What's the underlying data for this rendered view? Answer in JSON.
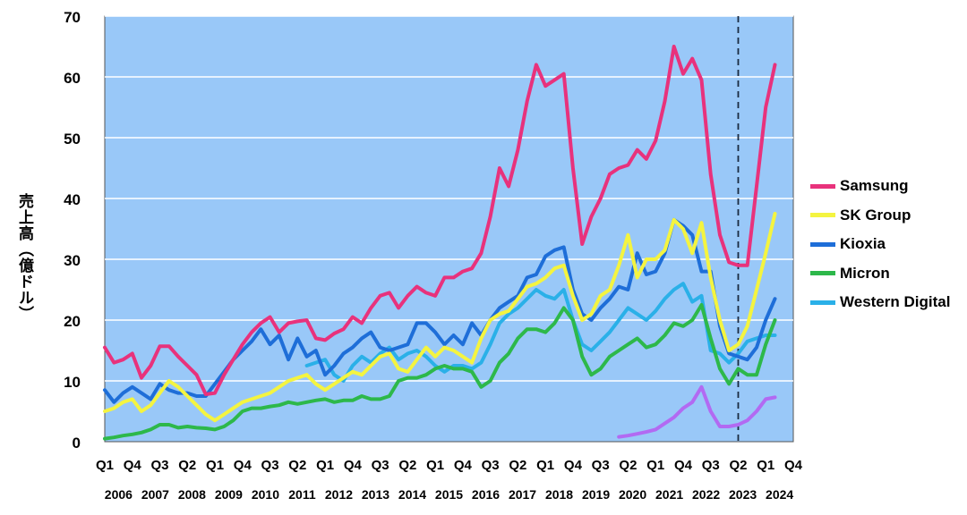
{
  "chart_data": {
    "type": "line",
    "ylabel": "売上高（億ドル）",
    "ylim": [
      0,
      70
    ],
    "yticks": [
      0,
      10,
      20,
      30,
      40,
      50,
      60,
      70
    ],
    "quarter_labels": [
      "Q1",
      "Q4",
      "Q3",
      "Q2",
      "Q1",
      "Q4",
      "Q3",
      "Q2",
      "Q1",
      "Q4",
      "Q3",
      "Q2",
      "Q1",
      "Q4",
      "Q3",
      "Q2",
      "Q1",
      "Q4",
      "Q3",
      "Q2",
      "Q1",
      "Q4",
      "Q3",
      "Q2",
      "Q1",
      "Q4"
    ],
    "years": [
      "2006",
      "2007",
      "2008",
      "2009",
      "2010",
      "2011",
      "2012",
      "2013",
      "2014",
      "2015",
      "2016",
      "2017",
      "2018",
      "2019",
      "2020",
      "2021",
      "2022",
      "2023",
      "2024"
    ],
    "x_range": [
      "2006 Q1",
      "2024 Q4"
    ],
    "vertical_marker": "2023 Q2",
    "grid": true,
    "legend_position": "right",
    "background": "#99c8f8",
    "series": [
      {
        "name": "Samsung",
        "color": "#e8327c",
        "x": [
          "2006 Q1",
          "2006 Q2",
          "2006 Q3",
          "2006 Q4",
          "2007 Q1",
          "2007 Q2",
          "2007 Q3",
          "2007 Q4",
          "2008 Q1",
          "2008 Q2",
          "2008 Q3",
          "2008 Q4",
          "2009 Q1",
          "2009 Q2",
          "2009 Q3",
          "2009 Q4",
          "2010 Q1",
          "2010 Q2",
          "2010 Q3",
          "2010 Q4",
          "2011 Q1",
          "2011 Q2",
          "2011 Q3",
          "2011 Q4",
          "2012 Q1",
          "2012 Q2",
          "2012 Q3",
          "2012 Q4",
          "2013 Q1",
          "2013 Q2",
          "2013 Q3",
          "2013 Q4",
          "2014 Q1",
          "2014 Q2",
          "2014 Q3",
          "2014 Q4",
          "2015 Q1",
          "2015 Q2",
          "2015 Q3",
          "2015 Q4",
          "2016 Q1",
          "2016 Q2",
          "2016 Q3",
          "2016 Q4",
          "2017 Q1",
          "2017 Q2",
          "2017 Q3",
          "2017 Q4",
          "2018 Q1",
          "2018 Q2",
          "2018 Q3",
          "2018 Q4",
          "2019 Q1",
          "2019 Q2",
          "2019 Q3",
          "2019 Q4",
          "2020 Q1",
          "2020 Q2",
          "2020 Q3",
          "2020 Q4",
          "2021 Q1",
          "2021 Q2",
          "2021 Q3",
          "2021 Q4",
          "2022 Q1",
          "2022 Q2",
          "2022 Q3",
          "2022 Q4",
          "2023 Q1",
          "2023 Q2",
          "2023 Q3",
          "2023 Q4",
          "2024 Q1",
          "2024 Q2"
        ],
        "values": [
          15.5,
          13,
          13.5,
          14.5,
          10.5,
          12.5,
          15.7,
          15.7,
          14,
          12.5,
          11,
          7.8,
          8,
          11,
          13.5,
          16,
          18,
          19.5,
          20.5,
          18,
          19.5,
          19.8,
          20,
          17,
          16.7,
          17.8,
          18.5,
          20.5,
          19.5,
          22,
          24,
          24.5,
          22,
          24,
          25.5,
          24.5,
          24,
          27,
          27,
          28,
          28.5,
          31,
          37,
          45,
          42,
          48,
          56,
          62,
          58.5,
          59.5,
          60.5,
          45,
          32.5,
          37,
          40,
          44,
          45,
          45.5,
          48,
          46.5,
          49.5,
          56,
          65,
          60.5,
          63,
          59.5,
          44,
          34,
          29.5,
          29,
          29,
          42,
          55,
          62
        ]
      },
      {
        "name": "SK Group",
        "color": "#f4f440",
        "x": [
          "2006 Q1",
          "2006 Q2",
          "2006 Q3",
          "2006 Q4",
          "2007 Q1",
          "2007 Q2",
          "2007 Q3",
          "2007 Q4",
          "2008 Q1",
          "2008 Q2",
          "2008 Q3",
          "2008 Q4",
          "2009 Q1",
          "2009 Q2",
          "2009 Q3",
          "2009 Q4",
          "2010 Q1",
          "2010 Q2",
          "2010 Q3",
          "2010 Q4",
          "2011 Q1",
          "2011 Q2",
          "2011 Q3",
          "2011 Q4",
          "2012 Q1",
          "2012 Q2",
          "2012 Q3",
          "2012 Q4",
          "2013 Q1",
          "2013 Q2",
          "2013 Q3",
          "2013 Q4",
          "2014 Q1",
          "2014 Q2",
          "2014 Q3",
          "2014 Q4",
          "2015 Q1",
          "2015 Q2",
          "2015 Q3",
          "2015 Q4",
          "2016 Q1",
          "2016 Q2",
          "2016 Q3",
          "2016 Q4",
          "2017 Q1",
          "2017 Q2",
          "2017 Q3",
          "2017 Q4",
          "2018 Q1",
          "2018 Q2",
          "2018 Q3",
          "2018 Q4",
          "2019 Q1",
          "2019 Q2",
          "2019 Q3",
          "2019 Q4",
          "2020 Q1",
          "2020 Q2",
          "2020 Q3",
          "2020 Q4",
          "2021 Q1",
          "2021 Q2",
          "2021 Q3",
          "2021 Q4",
          "2022 Q1",
          "2022 Q2",
          "2022 Q3",
          "2022 Q4",
          "2023 Q1",
          "2023 Q2",
          "2023 Q3",
          "2023 Q4",
          "2024 Q1",
          "2024 Q2"
        ],
        "values": [
          5,
          5.5,
          6.5,
          7,
          5,
          6,
          8,
          10,
          9,
          7.5,
          6,
          4.5,
          3.5,
          4.5,
          5.5,
          6.5,
          7,
          7.5,
          8,
          9,
          10,
          10.5,
          11,
          9.5,
          8.5,
          9.5,
          10.5,
          11.5,
          11,
          12.5,
          14,
          14.5,
          12,
          11.5,
          13.5,
          15.5,
          14,
          15.5,
          15,
          14,
          13,
          17,
          20,
          21,
          21.5,
          23.5,
          25.5,
          26,
          27,
          28.5,
          29,
          24,
          20,
          21,
          24,
          25,
          29,
          34,
          27,
          30,
          30,
          31.5,
          36.5,
          35,
          31,
          36,
          27,
          20,
          15,
          16,
          19,
          25,
          31,
          37.5
        ]
      },
      {
        "name": "Kioxia",
        "color": "#1e6ed8",
        "x": [
          "2006 Q1",
          "2006 Q2",
          "2006 Q3",
          "2006 Q4",
          "2007 Q1",
          "2007 Q2",
          "2007 Q3",
          "2007 Q4",
          "2008 Q1",
          "2008 Q2",
          "2008 Q3",
          "2008 Q4",
          "2009 Q1",
          "2009 Q2",
          "2009 Q3",
          "2009 Q4",
          "2010 Q1",
          "2010 Q2",
          "2010 Q3",
          "2010 Q4",
          "2011 Q1",
          "2011 Q2",
          "2011 Q3",
          "2011 Q4",
          "2012 Q1",
          "2012 Q2",
          "2012 Q3",
          "2012 Q4",
          "2013 Q1",
          "2013 Q2",
          "2013 Q3",
          "2013 Q4",
          "2014 Q1",
          "2014 Q2",
          "2014 Q3",
          "2014 Q4",
          "2015 Q1",
          "2015 Q2",
          "2015 Q3",
          "2015 Q4",
          "2016 Q1",
          "2016 Q2",
          "2016 Q3",
          "2016 Q4",
          "2017 Q1",
          "2017 Q2",
          "2017 Q3",
          "2017 Q4",
          "2018 Q1",
          "2018 Q2",
          "2018 Q3",
          "2018 Q4",
          "2019 Q1",
          "2019 Q2",
          "2019 Q3",
          "2019 Q4",
          "2020 Q1",
          "2020 Q2",
          "2020 Q3",
          "2020 Q4",
          "2021 Q1",
          "2021 Q2",
          "2021 Q3",
          "2021 Q4",
          "2022 Q1",
          "2022 Q2",
          "2022 Q3",
          "2022 Q4",
          "2023 Q1",
          "2023 Q2",
          "2023 Q3",
          "2023 Q4",
          "2024 Q1",
          "2024 Q2"
        ],
        "values": [
          8.5,
          6.5,
          8,
          9,
          8,
          7,
          9.5,
          8.5,
          8,
          8,
          7.5,
          7.5,
          9.5,
          11.5,
          13.5,
          15,
          16.5,
          18.5,
          16,
          17.5,
          13.5,
          17,
          14,
          15,
          11,
          12.5,
          14.5,
          15.5,
          17,
          18,
          15.5,
          15,
          15.5,
          16,
          19.5,
          19.5,
          18,
          16,
          17.5,
          16,
          19.5,
          17.5,
          20,
          22,
          23,
          24,
          27,
          27.5,
          30.5,
          31.5,
          32,
          25,
          21,
          20,
          22,
          23.5,
          25.5,
          25,
          31,
          27.5,
          28,
          31,
          36.5,
          35.5,
          34,
          28,
          28,
          19,
          14.5,
          14,
          13.5,
          15.5,
          20,
          23.5
        ]
      },
      {
        "name": "Micron",
        "color": "#2db84a",
        "x": [
          "2006 Q1",
          "2006 Q2",
          "2006 Q3",
          "2006 Q4",
          "2007 Q1",
          "2007 Q2",
          "2007 Q3",
          "2007 Q4",
          "2008 Q1",
          "2008 Q2",
          "2008 Q3",
          "2008 Q4",
          "2009 Q1",
          "2009 Q2",
          "2009 Q3",
          "2009 Q4",
          "2010 Q1",
          "2010 Q2",
          "2010 Q3",
          "2010 Q4",
          "2011 Q1",
          "2011 Q2",
          "2011 Q3",
          "2011 Q4",
          "2012 Q1",
          "2012 Q2",
          "2012 Q3",
          "2012 Q4",
          "2013 Q1",
          "2013 Q2",
          "2013 Q3",
          "2013 Q4",
          "2014 Q1",
          "2014 Q2",
          "2014 Q3",
          "2014 Q4",
          "2015 Q1",
          "2015 Q2",
          "2015 Q3",
          "2015 Q4",
          "2016 Q1",
          "2016 Q2",
          "2016 Q3",
          "2016 Q4",
          "2017 Q1",
          "2017 Q2",
          "2017 Q3",
          "2017 Q4",
          "2018 Q1",
          "2018 Q2",
          "2018 Q3",
          "2018 Q4",
          "2019 Q1",
          "2019 Q2",
          "2019 Q3",
          "2019 Q4",
          "2020 Q1",
          "2020 Q2",
          "2020 Q3",
          "2020 Q4",
          "2021 Q1",
          "2021 Q2",
          "2021 Q3",
          "2021 Q4",
          "2022 Q1",
          "2022 Q2",
          "2022 Q3",
          "2022 Q4",
          "2023 Q1",
          "2023 Q2",
          "2023 Q3",
          "2023 Q4",
          "2024 Q1",
          "2024 Q2"
        ],
        "values": [
          0.5,
          0.7,
          1,
          1.2,
          1.5,
          2,
          2.8,
          2.8,
          2.3,
          2.5,
          2.3,
          2.2,
          2,
          2.5,
          3.5,
          5,
          5.5,
          5.5,
          5.8,
          6,
          6.5,
          6.2,
          6.5,
          6.8,
          7,
          6.5,
          6.8,
          6.8,
          7.5,
          7,
          7,
          7.5,
          10,
          10.5,
          10.5,
          11,
          12,
          12.5,
          12,
          12,
          11.5,
          9,
          10,
          13,
          14.5,
          17,
          18.5,
          18.5,
          18,
          19.5,
          22,
          20,
          14,
          11,
          12,
          14,
          15,
          16,
          17,
          15.5,
          16,
          17.5,
          19.5,
          19,
          20,
          22.5,
          17,
          12,
          9.5,
          12,
          11,
          11,
          16,
          20
        ]
      },
      {
        "name": "Western Digital",
        "color": "#2ab0e8",
        "x": [
          "2011 Q3",
          "2011 Q4",
          "2012 Q1",
          "2012 Q2",
          "2012 Q3",
          "2012 Q4",
          "2013 Q1",
          "2013 Q2",
          "2013 Q3",
          "2013 Q4",
          "2014 Q1",
          "2014 Q2",
          "2014 Q3",
          "2014 Q4",
          "2015 Q1",
          "2015 Q2",
          "2015 Q3",
          "2015 Q4",
          "2016 Q1",
          "2016 Q2",
          "2016 Q3",
          "2016 Q4",
          "2017 Q1",
          "2017 Q2",
          "2017 Q3",
          "2017 Q4",
          "2018 Q1",
          "2018 Q2",
          "2018 Q3",
          "2018 Q4",
          "2019 Q1",
          "2019 Q2",
          "2019 Q3",
          "2019 Q4",
          "2020 Q1",
          "2020 Q2",
          "2020 Q3",
          "2020 Q4",
          "2021 Q1",
          "2021 Q2",
          "2021 Q3",
          "2021 Q4",
          "2022 Q1",
          "2022 Q2",
          "2022 Q3",
          "2022 Q4",
          "2023 Q1",
          "2023 Q2",
          "2023 Q3",
          "2023 Q4",
          "2024 Q1",
          "2024 Q2"
        ],
        "values": [
          12.5,
          13,
          13.5,
          11,
          10,
          12.5,
          14,
          13,
          14.5,
          15.5,
          13.5,
          14.5,
          15,
          14,
          12.5,
          11.5,
          12.5,
          12.5,
          12,
          13,
          16,
          19.5,
          21,
          22,
          23.5,
          25,
          24,
          23.5,
          25,
          20,
          16,
          15,
          16.5,
          18,
          20,
          22,
          21,
          20,
          21.5,
          23.5,
          25,
          26,
          23,
          24,
          15,
          14.5,
          13,
          14.5,
          16.5,
          17,
          17.5,
          17.5
        ]
      },
      {
        "name": "",
        "color": "#b26af2",
        "x": [
          "2020 Q1",
          "2020 Q2",
          "2020 Q3",
          "2020 Q4",
          "2021 Q1",
          "2021 Q2",
          "2021 Q3",
          "2021 Q4",
          "2022 Q1",
          "2022 Q2",
          "2022 Q3",
          "2022 Q4",
          "2023 Q1",
          "2023 Q2",
          "2023 Q3",
          "2023 Q4",
          "2024 Q1",
          "2024 Q2"
        ],
        "values": [
          0.8,
          1,
          1.3,
          1.6,
          2,
          3,
          4,
          5.5,
          6.5,
          9,
          5,
          2.5,
          2.5,
          2.8,
          3.5,
          5,
          7,
          7.3
        ]
      }
    ]
  }
}
